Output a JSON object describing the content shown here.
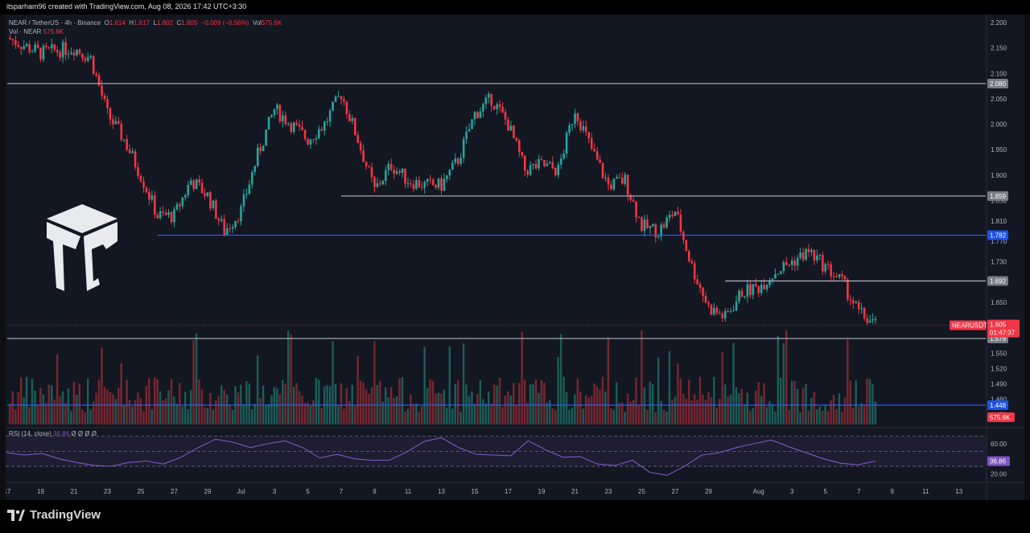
{
  "header": {
    "credit": "itsparham96 created with TradingView.com, Aug 08, 2026 17:42 UTC+3:30"
  },
  "legend": {
    "symbol": "NEAR / TetherUS · 4h · Binance",
    "o_label": "O",
    "o": "1.614",
    "h_label": "H",
    "h": "1.617",
    "l_label": "L",
    "l": "1.602",
    "c_label": "C",
    "c": "1.605",
    "change": "−0.009 (−0.56%)",
    "vol_label": "Vol",
    "vol": "575.6K",
    "vol_line": "Vol · NEAR",
    "vol_value": "575.6K"
  },
  "rsi_legend": {
    "label": "RSI (14, close)",
    "value": "36.86",
    "extras": "Ø Ø Ø Ø"
  },
  "footer": {
    "logo_text": "TradingView"
  },
  "colors": {
    "bg": "#131722",
    "up": "#26a69a",
    "down": "#f23645",
    "level": "#b2b5be",
    "blue_level": "#2962ff",
    "rsi": "#7e57c2"
  },
  "chart_data": [
    {
      "type": "candlestick",
      "title": "NEAR / TetherUS · 4h · Binance",
      "price_axis_ticks": [
        "2.200",
        "2.150",
        "2.100",
        "2.050",
        "2.000",
        "1.950",
        "1.900",
        "1.850",
        "1.810",
        "1.770",
        "1.730",
        "1.690",
        "1.650",
        "1.610",
        "1.580",
        "1.550",
        "1.520",
        "1.490",
        "1.460",
        "1.430"
      ],
      "x_ticks": [
        "17",
        "19",
        "21",
        "23",
        "25",
        "27",
        "29",
        "Jul",
        "3",
        "5",
        "7",
        "9",
        "11",
        "13",
        "15",
        "17",
        "19",
        "21",
        "23",
        "25",
        "27",
        "29",
        "Aug",
        "3",
        "5",
        "7",
        "9",
        "11",
        "13"
      ],
      "ylim": [
        1.41,
        2.2
      ],
      "close_path": [
        {
          "x": "Jun 17",
          "y": 2.17
        },
        {
          "x": "Jun 19",
          "y": 2.14
        },
        {
          "x": "Jun 21",
          "y": 2.15
        },
        {
          "x": "Jun 22",
          "y": 2.13
        },
        {
          "x": "Jun 23",
          "y": 2.02
        },
        {
          "x": "Jun 24",
          "y": 1.97
        },
        {
          "x": "Jun 25",
          "y": 1.9
        },
        {
          "x": "Jun 26",
          "y": 1.82
        },
        {
          "x": "Jun 27",
          "y": 1.82
        },
        {
          "x": "Jun 28",
          "y": 1.89
        },
        {
          "x": "Jun 29",
          "y": 1.86
        },
        {
          "x": "Jun 30",
          "y": 1.79
        },
        {
          "x": "Jul 1",
          "y": 1.83
        },
        {
          "x": "Jul 2",
          "y": 1.94
        },
        {
          "x": "Jul 3",
          "y": 2.03
        },
        {
          "x": "Jul 4",
          "y": 2.0
        },
        {
          "x": "Jul 5",
          "y": 1.97
        },
        {
          "x": "Jul 6",
          "y": 2.0
        },
        {
          "x": "Jul 7",
          "y": 2.06
        },
        {
          "x": "Jul 8",
          "y": 1.97
        },
        {
          "x": "Jul 9",
          "y": 1.87
        },
        {
          "x": "Jul 10",
          "y": 1.92
        },
        {
          "x": "Jul 11",
          "y": 1.89
        },
        {
          "x": "Jul 12",
          "y": 1.88
        },
        {
          "x": "Jul 13",
          "y": 1.88
        },
        {
          "x": "Jul 14",
          "y": 1.93
        },
        {
          "x": "Jul 15",
          "y": 2.02
        },
        {
          "x": "Jul 16",
          "y": 2.05
        },
        {
          "x": "Jul 17",
          "y": 2.0
        },
        {
          "x": "Jul 18",
          "y": 1.91
        },
        {
          "x": "Jul 19",
          "y": 1.92
        },
        {
          "x": "Jul 20",
          "y": 1.91
        },
        {
          "x": "Jul 21",
          "y": 2.03
        },
        {
          "x": "Jul 22",
          "y": 1.95
        },
        {
          "x": "Jul 23",
          "y": 1.88
        },
        {
          "x": "Jul 24",
          "y": 1.89
        },
        {
          "x": "Jul 25",
          "y": 1.8
        },
        {
          "x": "Jul 26",
          "y": 1.79
        },
        {
          "x": "Jul 27",
          "y": 1.83
        },
        {
          "x": "Jul 28",
          "y": 1.72
        },
        {
          "x": "Jul 29",
          "y": 1.64
        },
        {
          "x": "Jul 30",
          "y": 1.62
        },
        {
          "x": "Jul 31",
          "y": 1.67
        },
        {
          "x": "Aug 1",
          "y": 1.68
        },
        {
          "x": "Aug 2",
          "y": 1.71
        },
        {
          "x": "Aug 3",
          "y": 1.73
        },
        {
          "x": "Aug 4",
          "y": 1.75
        },
        {
          "x": "Aug 5",
          "y": 1.72
        },
        {
          "x": "Aug 6",
          "y": 1.69
        },
        {
          "x": "Aug 7",
          "y": 1.63
        },
        {
          "x": "Aug 8",
          "y": 1.605
        }
      ],
      "levels": [
        {
          "price": 2.08,
          "label": "2.080",
          "color": "#b2b5be",
          "from": "Jun 17"
        },
        {
          "price": 1.859,
          "label": "1.859",
          "color": "#b2b5be",
          "from": "Jul 7"
        },
        {
          "price": 1.782,
          "label": "1.782",
          "color": "#2962ff",
          "from": "Jun 26"
        },
        {
          "price": 1.692,
          "label": "1.692",
          "color": "#b2b5be",
          "from": "Jul 30"
        },
        {
          "price": 1.579,
          "label": "1.579",
          "color": "#b2b5be",
          "from": "Jun 17"
        },
        {
          "price": 1.448,
          "label": "1.448",
          "color": "#2962ff",
          "from": "Jun 17"
        }
      ],
      "last_price": {
        "symbol": "NEARUSDT",
        "price": "1.605",
        "countdown": "01:47:37"
      },
      "volume_label": "575.6K"
    },
    {
      "type": "line",
      "title": "RSI (14, close)",
      "ticks": [
        "60.00",
        "20.00"
      ],
      "ylim": [
        15,
        75
      ],
      "bands": [
        70,
        30
      ],
      "values": [
        48,
        45,
        47,
        40,
        35,
        31,
        30,
        35,
        37,
        33,
        42,
        55,
        66,
        62,
        55,
        60,
        64,
        55,
        41,
        46,
        40,
        38,
        38,
        49,
        63,
        68,
        55,
        46,
        45,
        44,
        64,
        52,
        42,
        43,
        33,
        31,
        38,
        22,
        18,
        30,
        45,
        48,
        55,
        60,
        65,
        56,
        48,
        40,
        34,
        32,
        36.86
      ],
      "last": "36.86"
    }
  ]
}
